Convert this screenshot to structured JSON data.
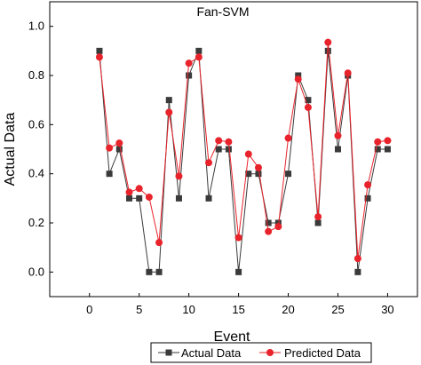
{
  "chart_data": {
    "type": "line",
    "title": "Fan-SVM",
    "xlabel": "Event",
    "ylabel": "Actual Data",
    "xlim": [
      -4,
      33
    ],
    "ylim": [
      -0.1,
      1.1
    ],
    "xticks": [
      0,
      5,
      10,
      15,
      20,
      25,
      30
    ],
    "yticks": [
      0.0,
      0.2,
      0.4,
      0.6,
      0.8,
      1.0
    ],
    "ytick_labels": [
      "0.0",
      "0.2",
      "0.4",
      "0.6",
      "0.8",
      "1.0"
    ],
    "legend_position": "bottom",
    "x": [
      1,
      2,
      3,
      4,
      5,
      6,
      7,
      8,
      9,
      10,
      11,
      12,
      13,
      14,
      15,
      16,
      17,
      18,
      19,
      20,
      21,
      22,
      23,
      24,
      25,
      26,
      27,
      28,
      29,
      30
    ],
    "series": [
      {
        "name": "Actual Data",
        "color": "#3a3a3a",
        "marker": "square",
        "values": [
          0.9,
          0.4,
          0.5,
          0.3,
          0.3,
          0.0,
          0.0,
          0.7,
          0.3,
          0.8,
          0.9,
          0.3,
          0.5,
          0.5,
          0.0,
          0.4,
          0.4,
          0.2,
          0.2,
          0.4,
          0.8,
          0.7,
          0.2,
          0.9,
          0.5,
          0.8,
          0.0,
          0.3,
          0.5,
          0.5
        ]
      },
      {
        "name": "Predicted Data",
        "color": "#e8232b",
        "marker": "circle",
        "values": [
          0.875,
          0.505,
          0.525,
          0.325,
          0.34,
          0.305,
          0.12,
          0.65,
          0.39,
          0.85,
          0.875,
          0.445,
          0.535,
          0.53,
          0.14,
          0.48,
          0.425,
          0.165,
          0.185,
          0.545,
          0.785,
          0.67,
          0.225,
          0.935,
          0.555,
          0.81,
          0.055,
          0.355,
          0.53,
          0.535
        ]
      }
    ]
  }
}
